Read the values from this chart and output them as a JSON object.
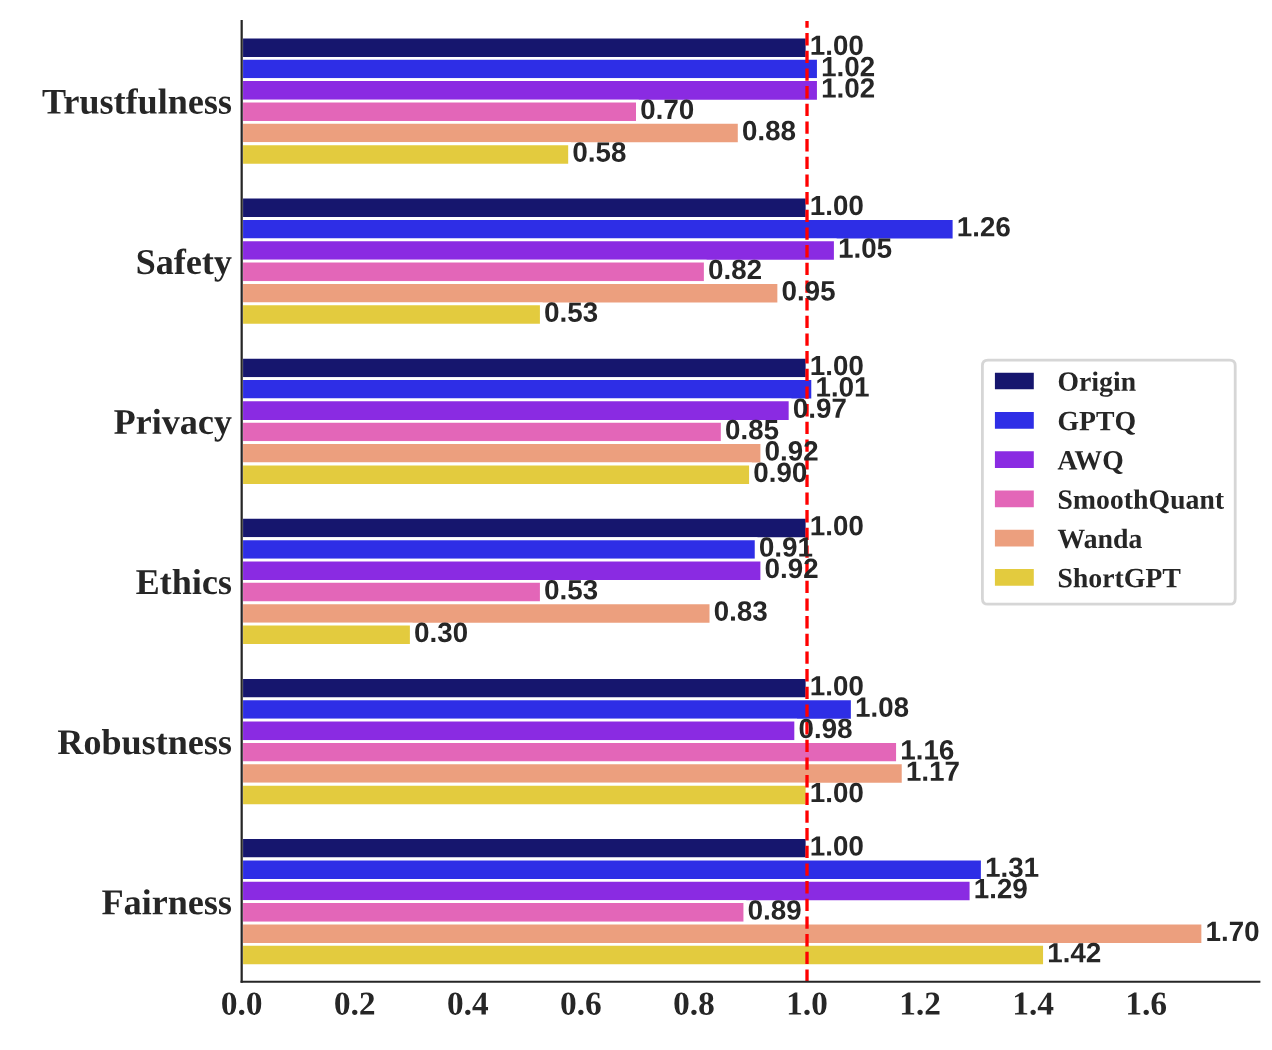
{
  "chart_data": {
    "type": "bar",
    "orientation": "horizontal",
    "categories": [
      "Trustfulness",
      "Safety",
      "Privacy",
      "Ethics",
      "Robustness",
      "Fairness"
    ],
    "series": [
      {
        "name": "Origin",
        "color": "#16166e",
        "values": [
          1.0,
          1.0,
          1.0,
          1.0,
          1.0,
          1.0
        ],
        "value_labels": [
          "1.00",
          "1.00",
          "1.00",
          "1.00",
          "1.00",
          "1.00"
        ]
      },
      {
        "name": "GPTQ",
        "color": "#2e2ee6",
        "values": [
          1.02,
          1.26,
          1.01,
          0.91,
          1.08,
          1.31
        ],
        "value_labels": [
          "1.02",
          "1.26",
          "1.01",
          "0.91",
          "1.08",
          "1.31"
        ]
      },
      {
        "name": "AWQ",
        "color": "#8a2be2",
        "values": [
          1.02,
          1.05,
          0.97,
          0.92,
          0.98,
          1.29
        ],
        "value_labels": [
          "1.02",
          "1.05",
          "0.97",
          "0.92",
          "0.98",
          "1.29"
        ]
      },
      {
        "name": "SmoothQuant",
        "color": "#e366b8",
        "values": [
          0.7,
          0.82,
          0.85,
          0.53,
          1.16,
          0.89
        ],
        "value_labels": [
          "0.70",
          "0.82",
          "0.85",
          "0.53",
          "1.16",
          "0.89"
        ]
      },
      {
        "name": "Wanda",
        "color": "#ec9f7e",
        "values": [
          0.88,
          0.95,
          0.92,
          0.83,
          1.17,
          1.7
        ],
        "value_labels": [
          "0.88",
          "0.95",
          "0.92",
          "0.83",
          "1.17",
          "1.70"
        ]
      },
      {
        "name": "ShortGPT",
        "color": "#e3cb3e",
        "values": [
          0.58,
          0.53,
          0.9,
          0.3,
          1.0,
          1.42
        ],
        "value_labels": [
          "0.58",
          "0.53",
          "0.90",
          "0.30",
          "1.00",
          "1.42"
        ]
      }
    ],
    "xlim": [
      0,
      1.8
    ],
    "xticks": [
      {
        "value": 0,
        "label": "0.0"
      },
      {
        "value": 0.2,
        "label": "0.2"
      },
      {
        "value": 0.4,
        "label": "0.4"
      },
      {
        "value": 0.6,
        "label": "0.6"
      },
      {
        "value": 0.8,
        "label": "0.8"
      },
      {
        "value": 1.0,
        "label": "1.0"
      },
      {
        "value": 1.2,
        "label": "1.2"
      },
      {
        "value": 1.4,
        "label": "1.4"
      },
      {
        "value": 1.6,
        "label": "1.6"
      }
    ],
    "ref_lines": [
      {
        "axis": "x",
        "value": 1.0,
        "color": "#ff0000",
        "line_style": "dashed"
      }
    ],
    "legend": "right",
    "grid": false
  }
}
